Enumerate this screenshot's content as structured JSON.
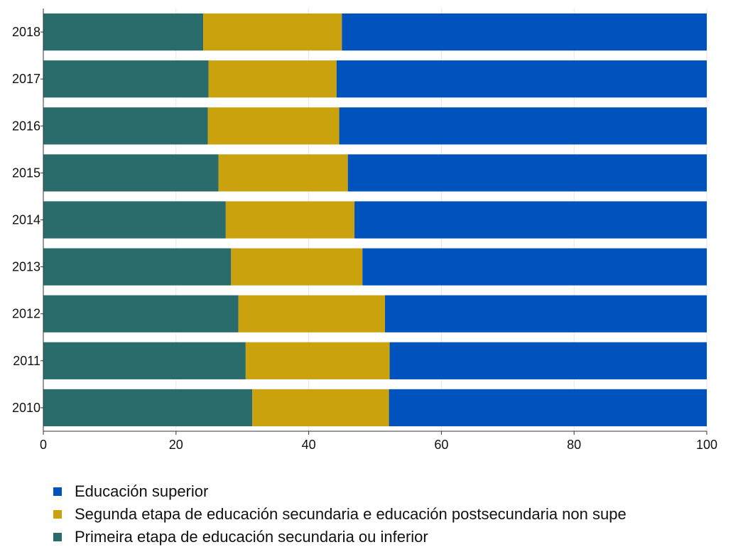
{
  "chart_data": {
    "type": "bar",
    "orientation": "horizontal",
    "stacked": true,
    "categories": [
      "2018",
      "2017",
      "2016",
      "2015",
      "2014",
      "2013",
      "2012",
      "2011",
      "2010"
    ],
    "series": [
      {
        "name": "Primeira etapa de educación secundaria ou inferior",
        "color": "#2a6b6b",
        "values": [
          24.1,
          24.9,
          24.8,
          26.4,
          27.5,
          28.3,
          29.4,
          30.5,
          31.5
        ]
      },
      {
        "name": "Segunda etapa de educación secundaria e educación postsecundaria non supe",
        "color": "#c9a20e",
        "values": [
          20.9,
          19.3,
          19.8,
          19.5,
          19.4,
          19.8,
          22.1,
          21.7,
          20.6
        ]
      },
      {
        "name": "Educación superior",
        "color": "#0052bd",
        "values": [
          55.0,
          55.8,
          55.4,
          54.1,
          53.1,
          51.9,
          48.5,
          47.8,
          47.9
        ]
      }
    ],
    "xlim": [
      0,
      100
    ],
    "xticks": [
      "0",
      "20",
      "40",
      "60",
      "80",
      "100"
    ],
    "xlabel": "",
    "ylabel": "",
    "title": "",
    "grid": true,
    "legend_position": "bottom"
  },
  "legend": {
    "items": [
      {
        "label": "Educación superior",
        "color": "#0052bd"
      },
      {
        "label": "Segunda etapa de educación secundaria e educación postsecundaria non supe",
        "color": "#c9a20e"
      },
      {
        "label": "Primeira etapa de educación secundaria ou inferior",
        "color": "#2a6b6b"
      }
    ]
  }
}
